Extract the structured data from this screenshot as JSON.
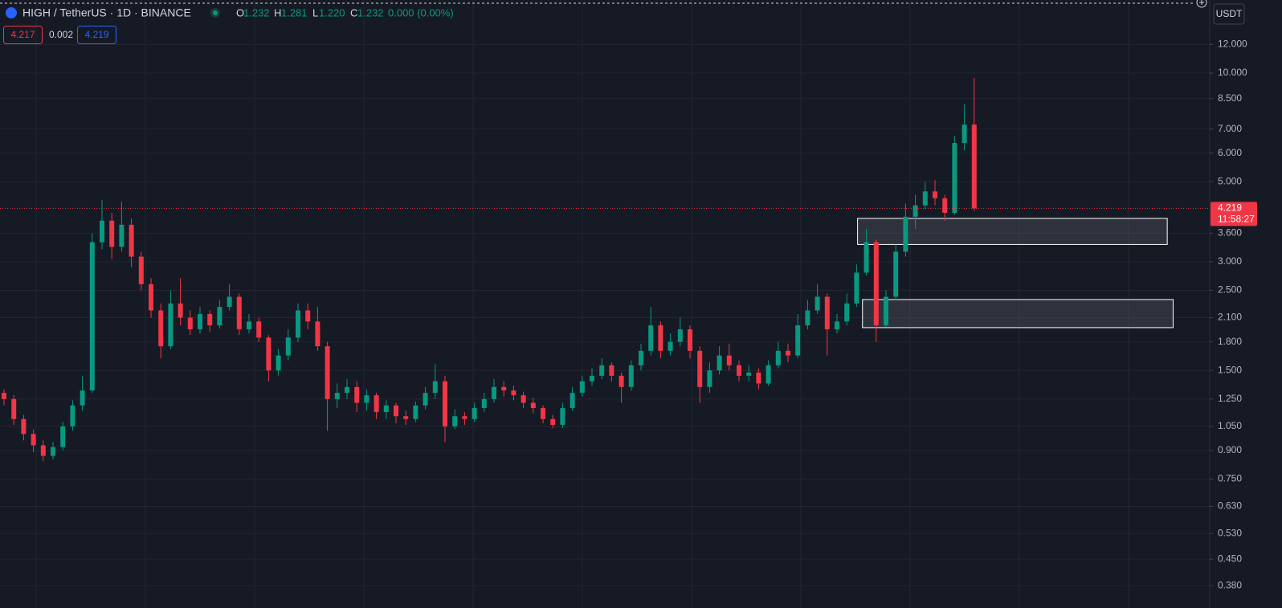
{
  "chart_data": {
    "type": "candlestick",
    "title": "HIGH / TetherUS · 1D · BINANCE",
    "ohlc_header": [
      {
        "key": "O",
        "value": "1.232"
      },
      {
        "key": "H",
        "value": "1.281"
      },
      {
        "key": "L",
        "value": "1.220"
      },
      {
        "key": "C",
        "value": "1.232"
      }
    ],
    "change": "0.000 (0.00%)",
    "indicators": [
      "4.217",
      "0.002",
      "4.219"
    ],
    "currency": "USDT",
    "last_price": 4.219,
    "countdown": "11:58:27",
    "log_scale": true,
    "grid": true,
    "up_color": "#089981",
    "down_color": "#f23645",
    "ylim": [
      0.354,
      15.94
    ],
    "yticks": [
      {
        "value": 12,
        "label": "12.000"
      },
      {
        "value": 10,
        "label": "10.000"
      },
      {
        "value": 8.5,
        "label": "8.500"
      },
      {
        "value": 7,
        "label": "7.000"
      },
      {
        "value": 6,
        "label": "6.000"
      },
      {
        "value": 5,
        "label": "5.000"
      },
      {
        "value": 3.6,
        "label": "3.600"
      },
      {
        "value": 3,
        "label": "3.000"
      },
      {
        "value": 2.5,
        "label": "2.500"
      },
      {
        "value": 2.1,
        "label": "2.100"
      },
      {
        "value": 1.8,
        "label": "1.800"
      },
      {
        "value": 1.5,
        "label": "1.500"
      },
      {
        "value": 1.25,
        "label": "1.250"
      },
      {
        "value": 1.05,
        "label": "1.050"
      },
      {
        "value": 0.9,
        "label": "0.900"
      },
      {
        "value": 0.75,
        "label": "0.750"
      },
      {
        "value": 0.63,
        "label": "0.630"
      },
      {
        "value": 0.53,
        "label": "0.530"
      },
      {
        "value": 0.45,
        "label": "0.450"
      },
      {
        "value": 0.38,
        "label": "0.380"
      }
    ],
    "open": [
      1.3,
      1.25,
      1.1,
      1.0,
      0.93,
      0.87,
      0.92,
      1.05,
      1.2,
      1.32,
      3.4,
      3.9,
      3.3,
      3.8,
      3.1,
      2.6,
      2.2,
      1.75,
      2.3,
      2.1,
      1.95,
      2.15,
      2.0,
      2.25,
      2.4,
      1.95,
      2.05,
      1.85,
      1.5,
      1.65,
      1.85,
      2.2,
      2.05,
      1.75,
      1.25,
      1.3,
      1.35,
      1.22,
      1.28,
      1.15,
      1.2,
      1.12,
      1.1,
      1.2,
      1.3,
      1.4,
      1.05,
      1.12,
      1.1,
      1.18,
      1.25,
      1.35,
      1.32,
      1.28,
      1.22,
      1.18,
      1.1,
      1.06,
      1.18,
      1.3,
      1.4,
      1.45,
      1.55,
      1.45,
      1.35,
      1.55,
      1.7,
      2.0,
      1.7,
      1.8,
      1.95,
      1.7,
      1.35,
      1.5,
      1.65,
      1.55,
      1.45,
      1.48,
      1.38,
      1.55,
      1.7,
      1.65,
      2.0,
      2.2,
      2.4,
      1.95,
      2.05,
      2.3,
      2.8,
      3.4,
      2.0,
      2.4,
      3.2,
      4.0,
      4.3,
      4.7,
      4.5,
      4.1,
      6.4,
      7.2
    ],
    "high": [
      1.33,
      1.28,
      1.13,
      1.03,
      0.96,
      0.95,
      1.08,
      1.24,
      1.45,
      3.6,
      4.45,
      4.1,
      4.4,
      3.95,
      3.2,
      2.7,
      2.3,
      2.5,
      2.7,
      2.2,
      2.25,
      2.2,
      2.35,
      2.6,
      2.45,
      2.15,
      2.1,
      1.88,
      1.72,
      1.95,
      2.3,
      2.3,
      2.25,
      1.8,
      1.38,
      1.42,
      1.4,
      1.33,
      1.3,
      1.24,
      1.22,
      1.16,
      1.23,
      1.35,
      1.56,
      1.45,
      1.17,
      1.15,
      1.22,
      1.3,
      1.42,
      1.4,
      1.36,
      1.31,
      1.26,
      1.2,
      1.13,
      1.22,
      1.35,
      1.45,
      1.52,
      1.62,
      1.58,
      1.48,
      1.6,
      1.78,
      2.25,
      2.05,
      1.9,
      2.1,
      2.0,
      1.75,
      1.58,
      1.75,
      1.78,
      1.6,
      1.55,
      1.52,
      1.6,
      1.8,
      1.78,
      2.15,
      2.35,
      2.6,
      2.45,
      2.15,
      2.45,
      2.95,
      3.7,
      3.45,
      2.5,
      3.35,
      4.35,
      4.6,
      5.0,
      5.05,
      4.6,
      6.7,
      8.2,
      9.7
    ],
    "low": [
      1.2,
      1.06,
      0.96,
      0.89,
      0.84,
      0.85,
      0.9,
      1.02,
      1.16,
      1.3,
      3.25,
      3.05,
      3.2,
      2.9,
      2.5,
      2.1,
      1.62,
      1.72,
      2.0,
      1.88,
      1.9,
      1.92,
      1.96,
      2.2,
      1.88,
      1.9,
      1.8,
      1.4,
      1.45,
      1.6,
      1.8,
      1.95,
      1.7,
      1.02,
      1.18,
      1.25,
      1.15,
      1.16,
      1.1,
      1.1,
      1.07,
      1.06,
      1.08,
      1.17,
      1.25,
      0.95,
      1.03,
      1.06,
      1.08,
      1.15,
      1.22,
      1.27,
      1.24,
      1.18,
      1.14,
      1.07,
      1.04,
      1.04,
      1.16,
      1.27,
      1.36,
      1.42,
      1.4,
      1.22,
      1.32,
      1.5,
      1.65,
      1.62,
      1.65,
      1.75,
      1.62,
      1.22,
      1.3,
      1.46,
      1.5,
      1.4,
      1.4,
      1.33,
      1.36,
      1.52,
      1.58,
      1.62,
      1.95,
      2.15,
      1.65,
      1.9,
      2.0,
      2.25,
      2.75,
      1.8,
      1.98,
      2.35,
      3.1,
      3.7,
      4.2,
      4.3,
      3.9,
      4.05,
      6.1,
      4.15
    ],
    "close": [
      1.25,
      1.1,
      1.0,
      0.93,
      0.87,
      0.92,
      1.05,
      1.2,
      1.32,
      3.4,
      3.9,
      3.3,
      3.8,
      3.1,
      2.6,
      2.2,
      1.75,
      2.3,
      2.1,
      1.95,
      2.15,
      2.0,
      2.25,
      2.4,
      1.95,
      2.05,
      1.85,
      1.5,
      1.65,
      1.85,
      2.2,
      2.05,
      1.75,
      1.25,
      1.3,
      1.35,
      1.22,
      1.28,
      1.15,
      1.2,
      1.12,
      1.1,
      1.2,
      1.3,
      1.4,
      1.05,
      1.12,
      1.1,
      1.18,
      1.25,
      1.35,
      1.32,
      1.28,
      1.22,
      1.18,
      1.1,
      1.06,
      1.18,
      1.3,
      1.4,
      1.45,
      1.55,
      1.45,
      1.35,
      1.55,
      1.7,
      2.0,
      1.7,
      1.8,
      1.95,
      1.7,
      1.35,
      1.5,
      1.65,
      1.55,
      1.45,
      1.48,
      1.38,
      1.55,
      1.7,
      1.65,
      2.0,
      2.2,
      2.4,
      1.95,
      2.05,
      2.3,
      2.8,
      3.4,
      2.0,
      2.4,
      3.2,
      4.0,
      4.3,
      4.7,
      4.5,
      4.1,
      6.4,
      7.2,
      4.219
    ],
    "zones": [
      {
        "low": 3.35,
        "high": 3.957,
        "start": 87.1,
        "end": 118.7
      },
      {
        "low": 1.971,
        "high": 2.358,
        "start": 87.6,
        "end": 119.3
      }
    ]
  }
}
